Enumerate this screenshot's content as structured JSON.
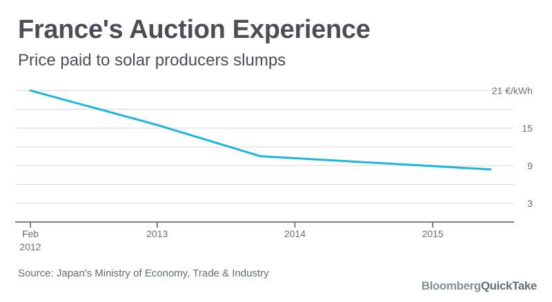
{
  "header": {
    "title": "France's Auction Experience",
    "subtitle": "Price paid to solar producers slumps"
  },
  "footer": {
    "source": "Source: Japan's Ministry of Economy, Trade & Industry",
    "brand_part1": "Bloomberg",
    "brand_part2": "QuickTake"
  },
  "colors": {
    "line": "#1bb5e0",
    "grid": "#d9d9d9",
    "axis": "#555555",
    "text": "#4d4d55",
    "tick_text": "#6b6e73"
  },
  "chart_data": {
    "type": "line",
    "title": "France's Auction Experience",
    "subtitle": "Price paid to solar producers slumps",
    "unit": "€/kWh",
    "x_ticks": [
      {
        "value": 2012.08,
        "label": "Feb",
        "label2": "2012"
      },
      {
        "value": 2013.0,
        "label": "2013"
      },
      {
        "value": 2014.0,
        "label": "2014"
      },
      {
        "value": 2015.0,
        "label": "2015"
      }
    ],
    "y_ticks": [
      {
        "value": 3,
        "label": "3"
      },
      {
        "value": 9,
        "label": "9"
      },
      {
        "value": 15,
        "label": "15"
      },
      {
        "value": 21,
        "label": "21 €/kWh"
      }
    ],
    "y_gridlines": [
      3,
      6,
      9,
      12,
      15,
      18,
      21
    ],
    "ylim": [
      0,
      21.8
    ],
    "xlim": [
      2012.08,
      2015.5
    ],
    "grid": true,
    "series": [
      {
        "x": [
          2012.08,
          2013.0,
          2013.75,
          2015.42
        ],
        "y": [
          21.0,
          15.5,
          10.5,
          8.4
        ]
      }
    ]
  }
}
